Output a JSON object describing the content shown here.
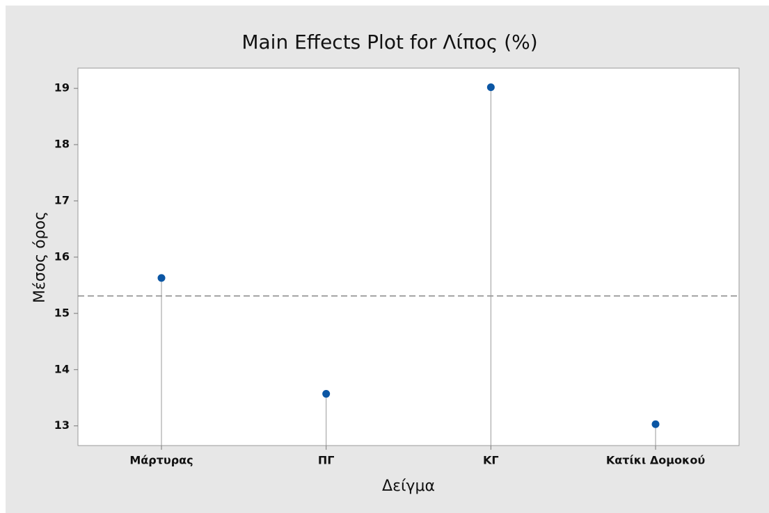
{
  "chart_data": {
    "type": "stem",
    "title": "Main Effects Plot for Λίπος (%)",
    "x_label": "Δείγμα",
    "y_label": "Μέσος όρος",
    "categories": [
      "Μάρτυρας",
      "ΠΓ",
      "ΚΓ",
      "Κατίκι Δομοκού"
    ],
    "values": [
      15.63,
      13.57,
      19.02,
      13.03
    ],
    "color": "#0b56a4",
    "reference_line": 15.31,
    "ylim": [
      12.65,
      19.36
    ],
    "yticks": [
      13,
      14,
      15,
      16,
      17,
      18,
      19
    ],
    "grid": false
  }
}
